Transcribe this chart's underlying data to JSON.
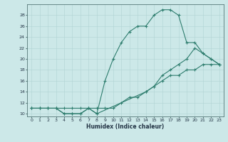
{
  "background_color": "#cce8e8",
  "grid_color_minor": "#b0d4d4",
  "grid_color_major": "#99c4c4",
  "line_color": "#2e7d6e",
  "xlabel": "Humidex (Indice chaleur)",
  "xlim": [
    -0.5,
    23.5
  ],
  "ylim": [
    9.5,
    30
  ],
  "yticks": [
    10,
    12,
    14,
    16,
    18,
    20,
    22,
    24,
    26,
    28
  ],
  "xticks": [
    0,
    1,
    2,
    3,
    4,
    5,
    6,
    7,
    8,
    9,
    10,
    11,
    12,
    13,
    14,
    15,
    16,
    17,
    18,
    19,
    20,
    21,
    22,
    23
  ],
  "line1_x": [
    0,
    1,
    2,
    3,
    4,
    5,
    6,
    7,
    8,
    9,
    10,
    11,
    12,
    13,
    14,
    15,
    16,
    17,
    18,
    19,
    20,
    21,
    22,
    23
  ],
  "line1_y": [
    11,
    11,
    11,
    11,
    10,
    10,
    10,
    11,
    10,
    16,
    20,
    23,
    25,
    26,
    26,
    28,
    29,
    29,
    28,
    23,
    23,
    21,
    20,
    19
  ],
  "line2_x": [
    0,
    1,
    2,
    3,
    4,
    5,
    6,
    7,
    8,
    9,
    10,
    11,
    12,
    13,
    14,
    15,
    16,
    17,
    18,
    19,
    20,
    21,
    22,
    23
  ],
  "line2_y": [
    11,
    11,
    11,
    11,
    11,
    11,
    11,
    11,
    11,
    11,
    11,
    12,
    13,
    13,
    14,
    15,
    17,
    18,
    19,
    20,
    22,
    21,
    20,
    19
  ],
  "line3_x": [
    0,
    1,
    2,
    3,
    4,
    5,
    6,
    7,
    8,
    14,
    15,
    16,
    17,
    18,
    19,
    20,
    21,
    22,
    23
  ],
  "line3_y": [
    11,
    11,
    11,
    11,
    10,
    10,
    10,
    11,
    10,
    14,
    15,
    16,
    17,
    17,
    18,
    18,
    19,
    19,
    19
  ]
}
